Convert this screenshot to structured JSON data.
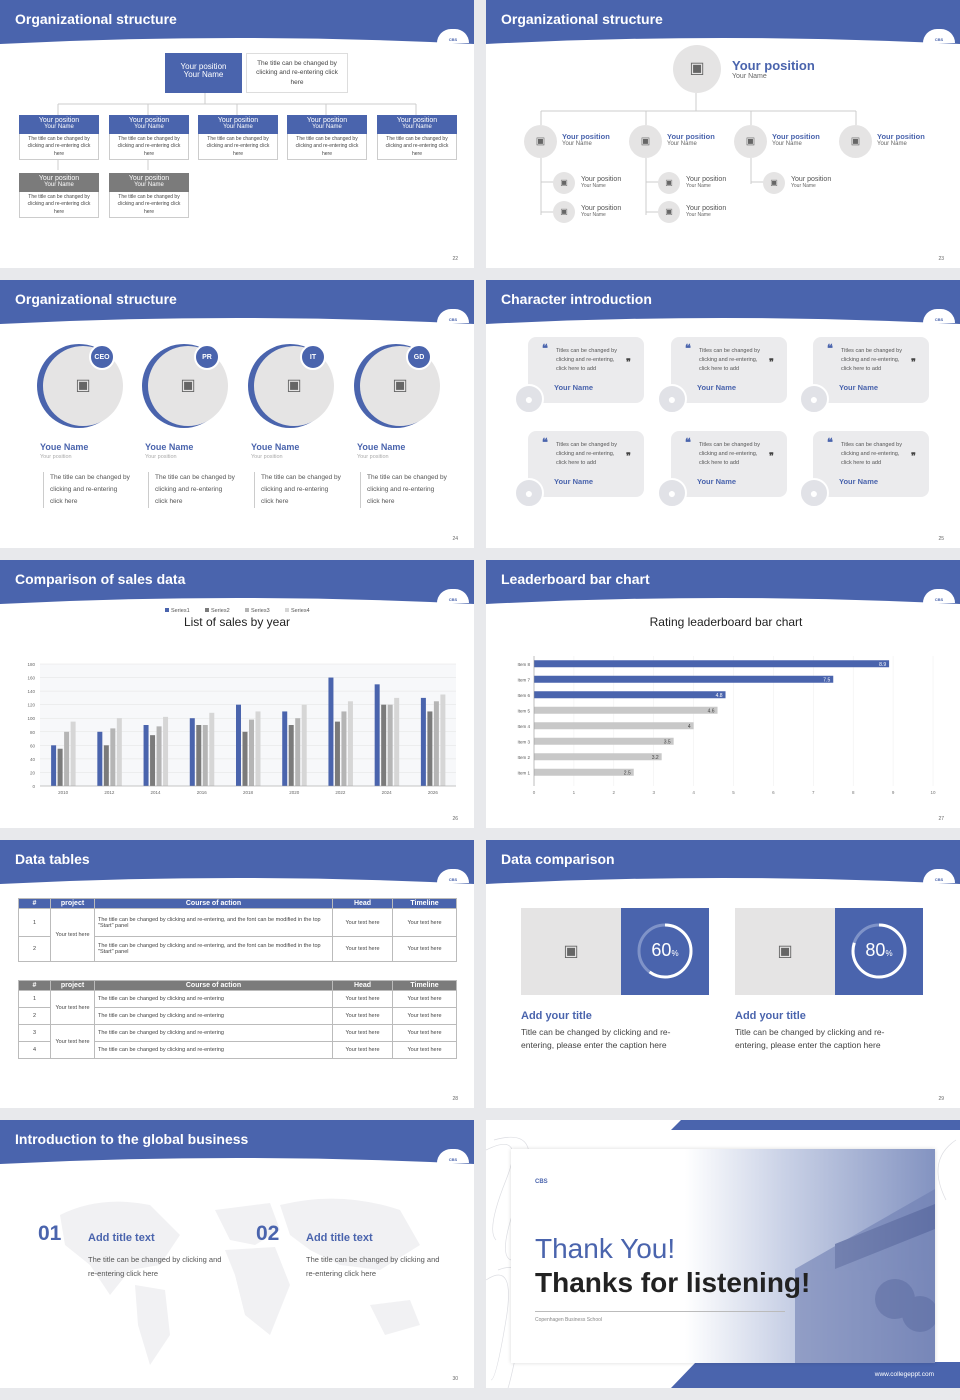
{
  "colors": {
    "accent": "#4a64ad",
    "gray": "#7b7b7b",
    "lightgray": "#cfcfcf"
  },
  "s22": {
    "title": "Organizational structure",
    "num": "22",
    "top": {
      "pos": "Your position",
      "name": "Your Name",
      "note": "The title can be changed by clicking and re-entering click here"
    },
    "boxes": [
      {
        "pos": "Your position",
        "name": "Your Name",
        "desc": "The title can be changed by clicking and re-entering click here"
      },
      {
        "pos": "Your position",
        "name": "Your Name",
        "desc": "The title can be changed by clicking and re-entering click here"
      },
      {
        "pos": "Your position",
        "name": "Your Name",
        "desc": "The title can be changed by clicking and re-entering click here"
      },
      {
        "pos": "Your position",
        "name": "Your Name",
        "desc": "The title can be changed by clicking and re-entering click here"
      },
      {
        "pos": "Your position",
        "name": "Your Name",
        "desc": "The title can be changed by clicking and re-entering click here"
      },
      {
        "pos": "Your position",
        "name": "Your Name",
        "desc": "The title can be changed by clicking and re-entering click here"
      },
      {
        "pos": "Your position",
        "name": "Your Name",
        "desc": "The title can be changed by clicking and re-entering click here"
      }
    ]
  },
  "s23": {
    "title": "Organizational structure",
    "num": "23",
    "top": {
      "pos": "Your position",
      "name": "Your Name"
    },
    "row": [
      {
        "pos": "Your position",
        "name": "Your Name"
      },
      {
        "pos": "Your position",
        "name": "Your Name"
      },
      {
        "pos": "Your position",
        "name": "Your Name"
      },
      {
        "pos": "Your position",
        "name": "Your Name"
      }
    ],
    "subs": [
      {
        "pos": "Your position",
        "name": "Your Name"
      },
      {
        "pos": "Your position",
        "name": "Your Name"
      },
      {
        "pos": "Your position",
        "name": "Your Name"
      },
      {
        "pos": "Your position",
        "name": "Your Name"
      },
      {
        "pos": "Your position",
        "name": "Your Name"
      }
    ]
  },
  "s24": {
    "title": "Organizational structure",
    "num": "24",
    "people": [
      {
        "badge": "CEO",
        "name": "Youe Name",
        "pos": "Your position",
        "desc": "The title can be changed by clicking and re-entering click here"
      },
      {
        "badge": "PR",
        "name": "Youe Name",
        "pos": "Your position",
        "desc": "The title can be changed by clicking and re-entering click here"
      },
      {
        "badge": "IT",
        "name": "Youe Name",
        "pos": "Your position",
        "desc": "The title can be changed by clicking and re-entering click here"
      },
      {
        "badge": "GD",
        "name": "Youe Name",
        "pos": "Your position",
        "desc": "The title can be changed by clicking and re-entering click here"
      }
    ]
  },
  "s25": {
    "title": "Character introduction",
    "num": "25",
    "cards": [
      {
        "text": "Titles can be changed by clicking and re-entering, click here to add",
        "name": "Your Name"
      },
      {
        "text": "Titles can be changed by clicking and re-entering, click here to add",
        "name": "Your Name"
      },
      {
        "text": "Titles can be changed by clicking and re-entering, click here to add",
        "name": "Your Name"
      },
      {
        "text": "Titles can be changed by clicking and re-entering, click here to add",
        "name": "Your Name"
      },
      {
        "text": "Titles can be changed by clicking and re-entering, click here to add",
        "name": "Your Name"
      },
      {
        "text": "Titles can be changed by clicking and re-entering, click here to add",
        "name": "Your Name"
      }
    ]
  },
  "s26": {
    "title": "Comparison of sales data",
    "num": "26"
  },
  "s27": {
    "title": "Leaderboard bar chart",
    "num": "27"
  },
  "s28": {
    "title": "Data tables",
    "num": "28",
    "t1": {
      "headers": [
        "#",
        "project",
        "Course of action",
        "Head",
        "Timeline"
      ],
      "group": "Your text here",
      "rows": [
        {
          "n": "1",
          "text": "The title can be changed by clicking and re-entering, and the font can be modified in the top \"Start\" panel",
          "head": "Your text here",
          "time": "Your text here"
        },
        {
          "n": "2",
          "text": "The title can be changed by clicking and re-entering, and the font can be modified in the top \"Start\" panel",
          "head": "Your text here",
          "time": "Your text here"
        }
      ]
    },
    "t2": {
      "headers": [
        "#",
        "project",
        "Course of action",
        "Head",
        "Timeline"
      ],
      "group1": "Your text here",
      "group2": "Your text here",
      "rows": [
        {
          "n": "1",
          "text": "The title can be changed by clicking and re-entering",
          "head": "Your text here",
          "time": "Your text here"
        },
        {
          "n": "2",
          "text": "The title can be changed by clicking and re-entering",
          "head": "Your text here",
          "time": "Your text here"
        },
        {
          "n": "3",
          "text": "The title can be changed by clicking and re-entering",
          "head": "Your text here",
          "time": "Your text here"
        },
        {
          "n": "4",
          "text": "The title can be changed by clicking and re-entering",
          "head": "Your text here",
          "time": "Your text here"
        }
      ]
    }
  },
  "s29": {
    "title": "Data comparison",
    "num": "29",
    "items": [
      {
        "pct": "60",
        "unit": "%",
        "value": 0.6,
        "title": "Add your title",
        "desc": "Title can be changed by clicking and re-entering, please enter the caption here"
      },
      {
        "pct": "80",
        "unit": "%",
        "value": 0.8,
        "title": "Add your title",
        "desc": "Title can be changed by clicking and re-entering, please enter the caption here"
      }
    ]
  },
  "s30": {
    "title": "Introduction to the global business",
    "num": "30",
    "items": [
      {
        "n": "01",
        "title": "Add title text",
        "desc": "The title can be changed by clicking and re-entering click here"
      },
      {
        "n": "02",
        "title": "Add title text",
        "desc": "The title can be changed by clicking and re-entering click here"
      }
    ]
  },
  "s31": {
    "thanks": "Thank You!",
    "listening": "Thanks for listening!",
    "school": "Copenhagen Business School",
    "url": "www.collegeppt.com",
    "logo": "CBS"
  },
  "logo_text": "CBS",
  "chart_data": [
    {
      "type": "bar",
      "title": "List of sales by year",
      "categories": [
        "2010",
        "2012",
        "2014",
        "2016",
        "2018",
        "2020",
        "2022",
        "2024",
        "2026"
      ],
      "series": [
        {
          "name": "Series1",
          "values": [
            60,
            80,
            90,
            100,
            120,
            110,
            160,
            150,
            130
          ]
        },
        {
          "name": "Series2",
          "values": [
            55,
            60,
            75,
            90,
            80,
            90,
            95,
            120,
            110
          ]
        },
        {
          "name": "Series3",
          "values": [
            80,
            85,
            88,
            90,
            98,
            100,
            110,
            120,
            125
          ]
        },
        {
          "name": "Series4",
          "values": [
            95,
            100,
            102,
            108,
            110,
            120,
            125,
            130,
            135
          ]
        }
      ],
      "ylim": [
        0,
        180
      ],
      "yticks": [
        0,
        20,
        40,
        60,
        80,
        100,
        120,
        140,
        160,
        180
      ],
      "legend": "top",
      "grid": true
    },
    {
      "type": "bar",
      "orientation": "horizontal",
      "title": "Rating leaderboard bar chart",
      "categories": [
        "Item 1",
        "Item 2",
        "Item 3",
        "Item 4",
        "Item 5",
        "Item 6",
        "Item 7",
        "Item 8"
      ],
      "values": [
        2.5,
        3.2,
        3.5,
        4,
        4.6,
        4.8,
        7.5,
        8.9
      ],
      "labels": [
        "2.5",
        "3.2",
        "3.5",
        "4",
        "4.6",
        "4.8",
        "7.5",
        "8.9"
      ],
      "xlim": [
        0,
        10
      ],
      "xticks": [
        0,
        1,
        2,
        3,
        4,
        5,
        6,
        7,
        8,
        9,
        10
      ],
      "highlight_top": 3,
      "grid": true
    }
  ]
}
